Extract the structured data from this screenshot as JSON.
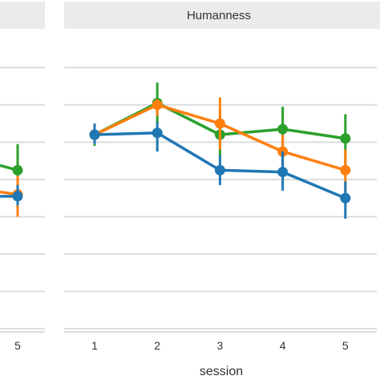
{
  "chart_data": [
    {
      "type": "line",
      "facet_title": "",
      "x": [
        5
      ],
      "ylim": [
        0,
        7.2
      ],
      "grid": true,
      "series": [
        {
          "color": "#2ca02c",
          "values": [
            4.25
          ],
          "err_low": [
            3.65
          ],
          "err_high": [
            4.95
          ]
        },
        {
          "color": "#ff7f0e",
          "values": [
            3.6
          ],
          "err_low": [
            3.0
          ],
          "err_high": [
            4.1
          ]
        },
        {
          "color": "#1f77b4",
          "values": [
            3.55
          ],
          "err_low": [
            3.3
          ],
          "err_high": [
            3.85
          ]
        }
      ]
    },
    {
      "type": "line",
      "facet_title": "Humanness",
      "x": [
        1,
        2,
        3,
        4,
        5
      ],
      "xlabel": "session",
      "ylim": [
        0,
        7.2
      ],
      "grid": true,
      "series": [
        {
          "color": "#2ca02c",
          "values": [
            5.2,
            6.05,
            5.2,
            5.35,
            5.1
          ],
          "err_low": [
            4.9,
            5.5,
            4.6,
            4.8,
            4.4
          ],
          "err_high": [
            5.5,
            6.6,
            5.85,
            5.95,
            5.75
          ]
        },
        {
          "color": "#ff7f0e",
          "values": [
            5.2,
            6.0,
            5.5,
            4.75,
            4.25
          ],
          "err_low": [
            4.95,
            5.7,
            4.8,
            4.15,
            3.5
          ],
          "err_high": [
            5.5,
            6.15,
            6.2,
            5.2,
            4.8
          ]
        },
        {
          "color": "#1f77b4",
          "values": [
            5.2,
            5.25,
            4.25,
            4.2,
            3.5
          ],
          "err_low": [
            4.95,
            4.75,
            3.85,
            3.7,
            2.95
          ],
          "err_high": [
            5.5,
            5.55,
            4.65,
            4.75,
            3.95
          ]
        }
      ]
    }
  ]
}
